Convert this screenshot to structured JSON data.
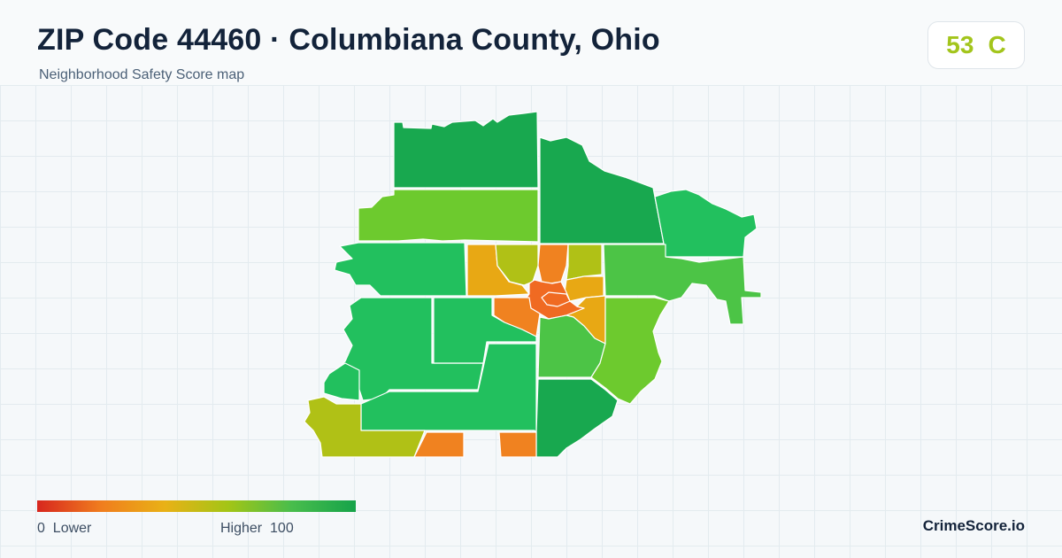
{
  "header": {
    "title": "ZIP Code 44460 · Columbiana County, Ohio",
    "subtitle": "Neighborhood Safety Score map"
  },
  "score": {
    "value": "53",
    "grade": "C",
    "color": "#a3c51c"
  },
  "legend": {
    "min": "0",
    "min_label": "Lower",
    "max_label": "Higher",
    "max": "100",
    "colors": [
      "#d7261e",
      "#f07d1e",
      "#e9b116",
      "#a3c516",
      "#48bd4c",
      "#16a34a"
    ]
  },
  "brand": "CrimeScore.io",
  "map": {
    "region_colors": {
      "dark_green": "#18a84f",
      "green": "#22c05e",
      "light_green": "#4cc446",
      "lime": "#6dca2e",
      "yellow_green": "#b0c116",
      "amber": "#e8a814",
      "orange": "#f08220",
      "red_orange": "#f06a22"
    }
  }
}
